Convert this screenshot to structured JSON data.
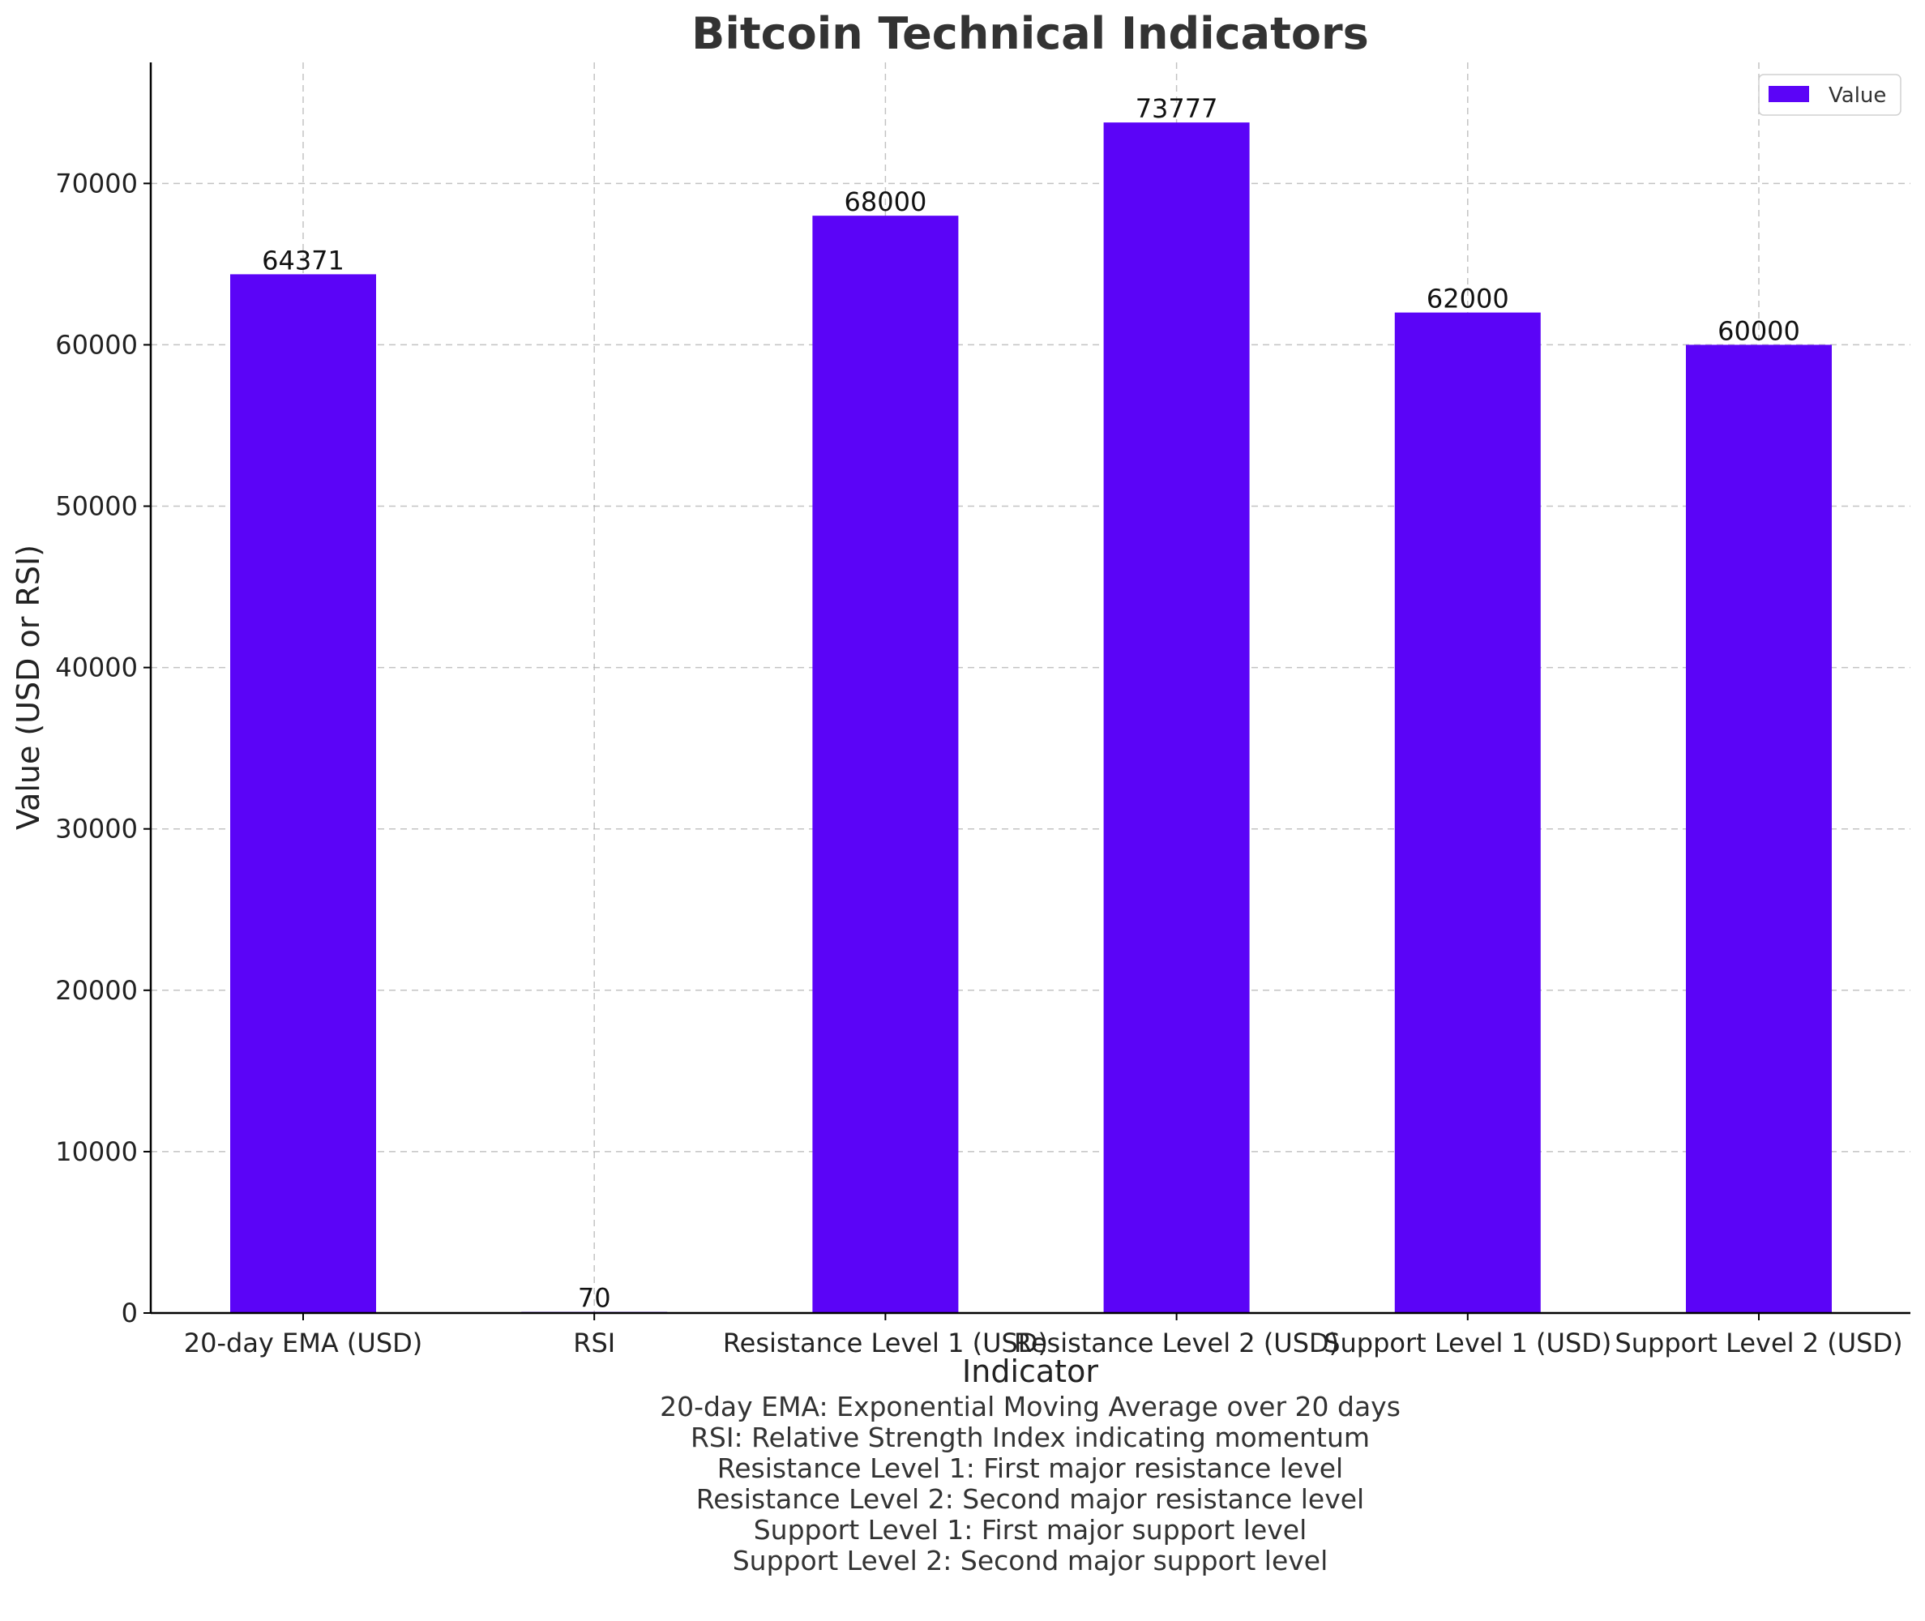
{
  "chart_data": {
    "type": "bar",
    "title": "Bitcoin Technical Indicators",
    "xlabel": "Indicator",
    "ylabel": "Value (USD or RSI)",
    "categories": [
      "20-day EMA (USD)",
      "RSI",
      "Resistance Level 1 (USD)",
      "Resistance Level 2 (USD)",
      "Support Level 1 (USD)",
      "Support Level 2 (USD)"
    ],
    "series": [
      {
        "name": "Value",
        "values": [
          64371,
          70,
          68000,
          73777,
          62000,
          60000
        ]
      }
    ],
    "data_labels": [
      "64371",
      "70",
      "68000",
      "73777",
      "62000",
      "60000"
    ],
    "ylim": [
      0,
      77500
    ],
    "yticks": [
      0,
      10000,
      20000,
      30000,
      40000,
      50000,
      60000,
      70000
    ],
    "grid": true,
    "legend": "top-right",
    "bar_color": "#5b04f7",
    "notes": [
      "20-day EMA: Exponential Moving Average over 20 days",
      "RSI: Relative Strength Index indicating momentum",
      "Resistance Level 1: First major resistance level",
      "Resistance Level 2: Second major resistance level",
      "Support Level 1: First major support level",
      "Support Level 2: Second major support level"
    ]
  }
}
